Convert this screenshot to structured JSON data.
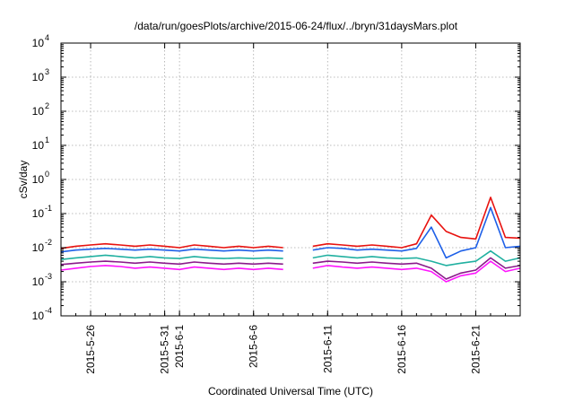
{
  "chart_data": {
    "type": "line",
    "title": "/data/run/goesPlots/archive/2015-06-24/flux/../bryn/31daysMars.plot",
    "xlabel": "Coordinated Universal Time (UTC)",
    "ylabel": "cSv/day",
    "yscale": "log",
    "ylim": [
      0.0001,
      10000
    ],
    "xlim": [
      "2015-05-24",
      "2015-06-24"
    ],
    "grid": true,
    "y_ticks": [
      {
        "base": "10",
        "exp": "-4",
        "value": 0.0001
      },
      {
        "base": "10",
        "exp": "-3",
        "value": 0.001
      },
      {
        "base": "10",
        "exp": "-2",
        "value": 0.01
      },
      {
        "base": "10",
        "exp": "-1",
        "value": 0.1
      },
      {
        "base": "10",
        "exp": "0",
        "value": 1
      },
      {
        "base": "10",
        "exp": "1",
        "value": 10
      },
      {
        "base": "10",
        "exp": "2",
        "value": 100
      },
      {
        "base": "10",
        "exp": "3",
        "value": 1000
      },
      {
        "base": "10",
        "exp": "4",
        "value": 10000
      }
    ],
    "x_ticks": [
      {
        "label": "2015-5-26",
        "date": "2015-05-26"
      },
      {
        "label": "2015-5-31",
        "date": "2015-05-31"
      },
      {
        "label": "2015-6-1",
        "date": "2015-06-01"
      },
      {
        "label": "2015-6-6",
        "date": "2015-06-06"
      },
      {
        "label": "2015-6-11",
        "date": "2015-06-11"
      },
      {
        "label": "2015-6-16",
        "date": "2015-06-16"
      },
      {
        "label": "2015-6-21",
        "date": "2015-06-21"
      }
    ],
    "x": [
      "2015-05-24",
      "2015-05-25",
      "2015-05-26",
      "2015-05-27",
      "2015-05-28",
      "2015-05-29",
      "2015-05-30",
      "2015-05-31",
      "2015-06-01",
      "2015-06-02",
      "2015-06-03",
      "2015-06-04",
      "2015-06-05",
      "2015-06-06",
      "2015-06-07",
      "2015-06-08",
      "2015-06-09",
      "2015-06-10",
      "2015-06-11",
      "2015-06-12",
      "2015-06-13",
      "2015-06-14",
      "2015-06-15",
      "2015-06-16",
      "2015-06-17",
      "2015-06-18",
      "2015-06-19",
      "2015-06-20",
      "2015-06-21",
      "2015-06-22",
      "2015-06-23",
      "2015-06-24"
    ],
    "series": [
      {
        "color": "#e8120f",
        "values": [
          0.0095,
          0.011,
          0.012,
          0.013,
          0.012,
          0.011,
          0.012,
          0.011,
          0.01,
          0.012,
          0.011,
          0.01,
          0.011,
          0.01,
          0.011,
          0.01,
          null,
          0.011,
          0.013,
          0.012,
          0.011,
          0.012,
          0.011,
          0.01,
          0.013,
          0.09,
          0.03,
          0.02,
          0.018,
          0.3,
          0.02,
          0.019
        ]
      },
      {
        "color": "#1e60e8",
        "values": [
          0.0075,
          0.0085,
          0.009,
          0.0095,
          0.009,
          0.0085,
          0.009,
          0.0085,
          0.008,
          0.009,
          0.0085,
          0.008,
          0.0085,
          0.008,
          0.0085,
          0.008,
          null,
          0.0085,
          0.01,
          0.0095,
          0.0085,
          0.009,
          0.0085,
          0.008,
          0.0095,
          0.04,
          0.005,
          0.008,
          0.01,
          0.15,
          0.01,
          0.011
        ]
      },
      {
        "color": "#20b0a0",
        "values": [
          0.0045,
          0.005,
          0.0055,
          0.006,
          0.0055,
          0.005,
          0.0055,
          0.005,
          0.0048,
          0.0055,
          0.005,
          0.0048,
          0.005,
          0.0048,
          0.005,
          0.0048,
          null,
          0.005,
          0.006,
          0.0055,
          0.005,
          0.0055,
          0.005,
          0.0048,
          0.005,
          0.004,
          0.003,
          0.0035,
          0.004,
          0.008,
          0.004,
          0.005
        ]
      },
      {
        "color": "#8a1a8a",
        "values": [
          0.0032,
          0.0035,
          0.0038,
          0.004,
          0.0038,
          0.0035,
          0.0038,
          0.0035,
          0.0033,
          0.0038,
          0.0035,
          0.0033,
          0.0035,
          0.0033,
          0.0035,
          0.0033,
          null,
          0.0035,
          0.004,
          0.0038,
          0.0035,
          0.0038,
          0.0035,
          0.0033,
          0.0035,
          0.0025,
          0.0012,
          0.0018,
          0.0022,
          0.005,
          0.0025,
          0.003
        ]
      },
      {
        "color": "#ff14ff",
        "values": [
          0.0022,
          0.0025,
          0.0028,
          0.003,
          0.0028,
          0.0025,
          0.0027,
          0.0025,
          0.0023,
          0.0027,
          0.0025,
          0.0023,
          0.0025,
          0.0023,
          0.0025,
          0.0023,
          null,
          0.0025,
          0.003,
          0.0027,
          0.0025,
          0.0027,
          0.0025,
          0.0023,
          0.0025,
          0.002,
          0.001,
          0.0015,
          0.0018,
          0.004,
          0.002,
          0.0025
        ]
      }
    ]
  }
}
